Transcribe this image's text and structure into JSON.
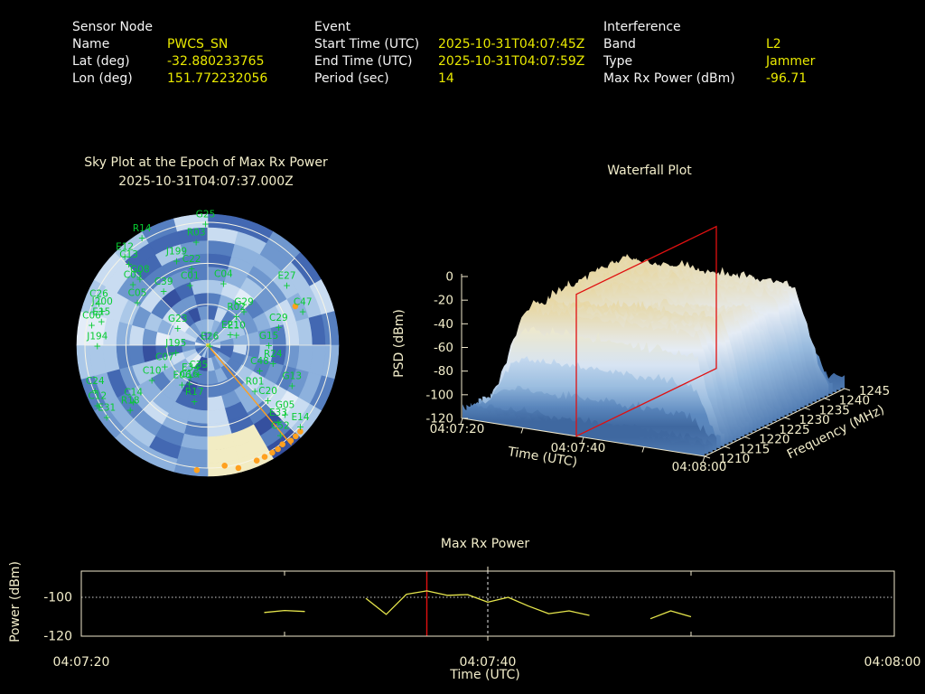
{
  "header": {
    "sensor": {
      "title": "Sensor Node",
      "rows": [
        [
          "Name",
          "PWCS_SN"
        ],
        [
          "Lat (deg)",
          "-32.880233765"
        ],
        [
          "Lon (deg)",
          "151.772232056"
        ]
      ]
    },
    "event": {
      "title": "Event",
      "rows": [
        [
          "Start Time (UTC)",
          "2025-10-31T04:07:45Z"
        ],
        [
          "End Time (UTC)",
          "2025-10-31T04:07:59Z"
        ],
        [
          "Period (sec)",
          "14"
        ]
      ]
    },
    "interference": {
      "title": "Interference",
      "rows": [
        [
          "Band",
          "L2"
        ],
        [
          "Type",
          "Jammer"
        ],
        [
          "Max Rx Power (dBm)",
          "-96.71"
        ]
      ]
    }
  },
  "colors": {
    "background": "#000000",
    "text_cream": "#f3eecb",
    "label_white": "#f5f5f5",
    "value_yellow": "#e9e900",
    "green": "#07cc31",
    "orange": "#ffa01e",
    "red": "#e01010",
    "axis": "#efe8cd",
    "yellow_line": "#e6e64c",
    "grid_white": "#f7f5e6",
    "threshold_dotted": "#cfcfcf",
    "cursor_dashed": "#e8e8e8",
    "center_marker": "#e8d44a"
  },
  "chart_data": [
    {
      "id": "sky_plot",
      "type": "heatmap",
      "projection": "polar",
      "title": "Sky Plot at the Epoch of Max Rx Power",
      "subtitle": "2025-10-31T04:07:37.000Z",
      "elevation_rings_deg": [
        0,
        30,
        60
      ],
      "azimuth_spoke_step_deg": 45,
      "satellite_fields": [
        "id",
        "az_deg",
        "r_fraction_of_horizon"
      ],
      "satellites": [
        [
          "G25",
          359,
          1.04
        ],
        [
          "R03",
          354,
          0.9
        ],
        [
          "R14",
          330,
          1.07
        ],
        [
          "E12",
          319,
          1.03
        ],
        [
          "C13",
          318,
          0.96
        ],
        [
          "J199",
          341,
          0.78
        ],
        [
          "C22",
          349,
          0.69
        ],
        [
          "G08",
          317,
          0.81
        ],
        [
          "C03",
          312,
          0.82
        ],
        [
          "C01",
          345,
          0.56
        ],
        [
          "C04",
          13,
          0.57
        ],
        [
          "E27",
          50,
          0.84
        ],
        [
          "C05",
          305,
          0.7
        ],
        [
          "C39",
          324,
          0.61
        ],
        [
          "C26",
          294,
          0.97
        ],
        [
          "J200",
          291,
          0.92
        ],
        [
          "E15",
          286,
          0.9
        ],
        [
          "C06",
          283,
          0.97
        ],
        [
          "J194",
          273,
          0.9
        ],
        [
          "G29",
          42,
          0.44
        ],
        [
          "R02",
          39,
          0.37
        ],
        [
          "C29",
          71,
          0.61
        ],
        [
          "C47",
          67,
          0.84
        ],
        [
          "G23",
          308,
          0.31
        ],
        [
          "E21",
          53,
          0.23
        ],
        [
          "E10",
          60,
          0.27
        ],
        [
          "E26",
          20,
          0.05
        ],
        [
          "G15",
          84,
          0.5
        ],
        [
          "J195",
          268,
          0.26
        ],
        [
          "R24",
          100,
          0.54
        ],
        [
          "C48",
          110,
          0.45
        ],
        [
          "C07",
          251,
          0.37
        ],
        [
          "C35",
          202,
          0.2
        ],
        [
          "E34",
          214,
          0.25
        ],
        [
          "C10",
          243,
          0.51
        ],
        [
          "C16",
          210,
          0.3
        ],
        [
          "E06",
          218,
          0.34
        ],
        [
          "R17",
          195,
          0.42
        ],
        [
          "G13",
          112,
          0.74
        ],
        [
          "R01",
          130,
          0.5
        ],
        [
          "C20",
          129,
          0.63
        ],
        [
          "C24",
          251,
          0.97
        ],
        [
          "C12",
          244,
          1.0
        ],
        [
          "C14",
          236,
          0.73
        ],
        [
          "R18",
          233,
          0.79
        ],
        [
          "E31",
          237,
          0.98
        ],
        [
          "G05",
          129,
          0.81
        ],
        [
          "E33",
          135,
          0.81
        ],
        [
          "E14",
          129,
          0.97
        ],
        [
          "C52",
          139,
          0.9
        ]
      ],
      "jammed_track_fields": [
        "az_deg",
        "r_fraction_of_horizon"
      ],
      "jammed_track": [
        [
          66,
          0.78
        ],
        [
          185,
          1.02
        ],
        [
          172,
          0.99
        ],
        [
          166,
          1.03
        ],
        [
          157,
          1.02
        ],
        [
          153,
          1.02
        ],
        [
          149,
          1.02
        ],
        [
          146,
          1.02
        ],
        [
          143,
          1.01
        ],
        [
          139,
          1.03
        ],
        [
          136,
          1.03
        ],
        [
          133,
          1.03
        ]
      ],
      "jammer_bearing_az_deg": 140,
      "heatmap": {
        "radial_bins": 10,
        "azimuth_bins": 24,
        "seed": 3
      },
      "hot_wedge": {
        "az_deg": [
          148,
          176
        ],
        "r": [
          0.7,
          1.0
        ]
      },
      "palette": [
        "#2b3a8f",
        "#35509f",
        "#4368b2",
        "#567fc0",
        "#6f97ce",
        "#8db1dd",
        "#abc8e8",
        "#c9dcf1",
        "#e4edf8"
      ],
      "hot_color": "#f2ecc3"
    },
    {
      "id": "waterfall",
      "type": "surface",
      "title": "Waterfall Plot",
      "x_axis": {
        "label": "Time (UTC)",
        "ticks": [
          "04:07:20",
          "04:07:40",
          "04:08:00"
        ],
        "range_sec": [
          0,
          40
        ]
      },
      "y_axis": {
        "label": "Frequency (MHz)",
        "ticks": [
          1210,
          1215,
          1220,
          1225,
          1230,
          1235,
          1240,
          1245
        ],
        "range": [
          1210,
          1245
        ]
      },
      "z_axis": {
        "label": "PSD (dBm)",
        "ticks": [
          0,
          -20,
          -40,
          -60,
          -80,
          -100,
          -120
        ],
        "range": [
          -120,
          0
        ]
      },
      "slice_plane_time": "04:07:37",
      "slice_plane_t_fraction": 0.47,
      "surface": {
        "noise_floor_dbm": -111,
        "plateau_dbm": -28,
        "seed": 7
      },
      "palette_stops": [
        [
          -120,
          "#3f68a0"
        ],
        [
          -105,
          "#5d8ac0"
        ],
        [
          -92,
          "#84abd5"
        ],
        [
          -78,
          "#aac8e7"
        ],
        [
          -62,
          "#cfe0f2"
        ],
        [
          -50,
          "#e9eef5"
        ],
        [
          -40,
          "#eee8c9"
        ],
        [
          -25,
          "#e7d6a0"
        ]
      ]
    },
    {
      "id": "max_rx_power",
      "type": "line",
      "title": "Max Rx Power",
      "xlabel": "Time (UTC)",
      "ylabel": "Power (dBm)",
      "x_ticks": [
        "04:07:20",
        "04:07:40",
        "04:08:00"
      ],
      "x_tick_sec": [
        0,
        20,
        40
      ],
      "minor_tick_sec": [
        10,
        30
      ],
      "x_range_sec": [
        0,
        40
      ],
      "y_range": [
        -86,
        -120
      ],
      "y_ticks": [
        -100,
        -120
      ],
      "threshold_dbm": -100,
      "epoch_time": "04:07:37",
      "epoch_line_sec": 17,
      "cursor_line_sec": 20,
      "max_value_dbm": -96.71,
      "segments": [
        {
          "t": [
            9,
            10,
            11
          ],
          "v": [
            -107.8,
            -106.8,
            -107.3
          ]
        },
        {
          "t": [
            14,
            15,
            16,
            17,
            18,
            19,
            20,
            21,
            22,
            23,
            24,
            25
          ],
          "v": [
            -100.5,
            -108.8,
            -98.4,
            -96.71,
            -99.0,
            -98.6,
            -102.5,
            -100.0,
            -104.5,
            -108.4,
            -107.0,
            -109.3
          ]
        },
        {
          "t": [
            28,
            29,
            30
          ],
          "v": [
            -111.0,
            -107.0,
            -110.0
          ]
        }
      ]
    }
  ]
}
